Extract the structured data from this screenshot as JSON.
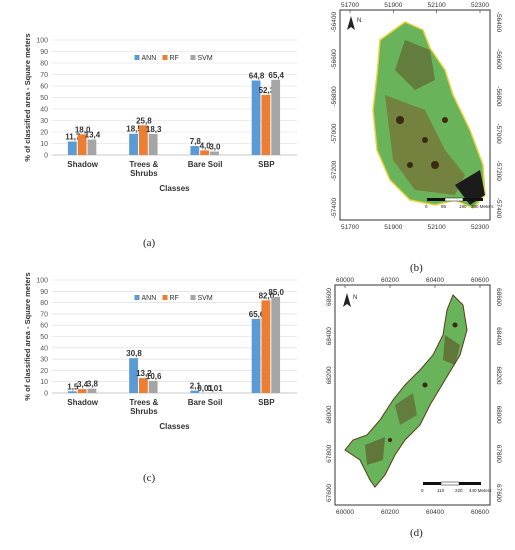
{
  "chart_data": [
    {
      "type": "bar",
      "ylabel": "% of classified area - Square meters",
      "xlabel": "Classes",
      "ylim": [
        0,
        100
      ],
      "yticks": [
        "0",
        "10",
        "20",
        "30",
        "40",
        "50",
        "60",
        "70",
        "80",
        "90",
        "100"
      ],
      "categories": [
        "Shadow",
        "Trees &\nShrubs",
        "Bare Soil",
        "SBP"
      ],
      "series": [
        {
          "name": "ANN",
          "color": "#5b9bd5",
          "values": [
            11.7,
            18.5,
            7.8,
            64.8
          ],
          "labels": [
            "11,7",
            "18,5",
            "7,8",
            "64,8"
          ]
        },
        {
          "name": "RF",
          "color": "#ed7d31",
          "values": [
            18.0,
            25.8,
            4.0,
            52.3
          ],
          "labels": [
            "18,0",
            "25,8",
            "4,0",
            "52,3"
          ]
        },
        {
          "name": "SVM",
          "color": "#a5a5a5",
          "values": [
            13.4,
            18.3,
            3.0,
            65.4
          ],
          "labels": [
            "13,4",
            "18,3",
            "3,0",
            "65,4"
          ]
        }
      ],
      "legend": "top-center",
      "grid": true
    },
    {
      "type": "bar",
      "ylabel": "% of classified area - Square meters",
      "xlabel": "Classes",
      "ylim": [
        0,
        100
      ],
      "yticks": [
        "0",
        "10",
        "20",
        "30",
        "40",
        "50",
        "60",
        "70",
        "80",
        "90",
        "100"
      ],
      "categories": [
        "Shadow",
        "Trees &\nShrubs",
        "Bare Soil",
        "SBP"
      ],
      "series": [
        {
          "name": "ANN",
          "color": "#5b9bd5",
          "values": [
            1.5,
            30.8,
            2.1,
            65.6
          ],
          "labels": [
            "1,5",
            "30,8",
            "2,1",
            "65,6"
          ]
        },
        {
          "name": "RF",
          "color": "#ed7d31",
          "values": [
            3.4,
            13.2,
            0.01,
            82.0
          ],
          "labels": [
            "3,4",
            "13,2",
            "0,01",
            "82,0"
          ]
        },
        {
          "name": "SVM",
          "color": "#a5a5a5",
          "values": [
            3.8,
            10.6,
            0.01,
            85.0
          ],
          "labels": [
            "3,8",
            "10,6",
            "0,01",
            "85,0"
          ]
        }
      ],
      "legend": "top-center",
      "grid": true
    }
  ],
  "maps": [
    {
      "xticks": [
        "51700",
        "51900",
        "52100",
        "52300"
      ],
      "yticks": [
        "-56400",
        "-56600",
        "-56800",
        "-57000",
        "-57200",
        "-57400"
      ],
      "north": "N",
      "scale_labels": [
        "0",
        "95",
        "190",
        "380 Meters"
      ]
    },
    {
      "xticks": [
        "60000",
        "60200",
        "60400",
        "60600"
      ],
      "yticks": [
        "68600",
        "68400",
        "68200",
        "68000",
        "67800",
        "67600"
      ],
      "north": "N",
      "scale_labels": [
        "0",
        "110",
        "220",
        "440 Meters"
      ]
    }
  ],
  "captions": [
    "(a)",
    "(b)",
    "(c)",
    "(d)"
  ]
}
